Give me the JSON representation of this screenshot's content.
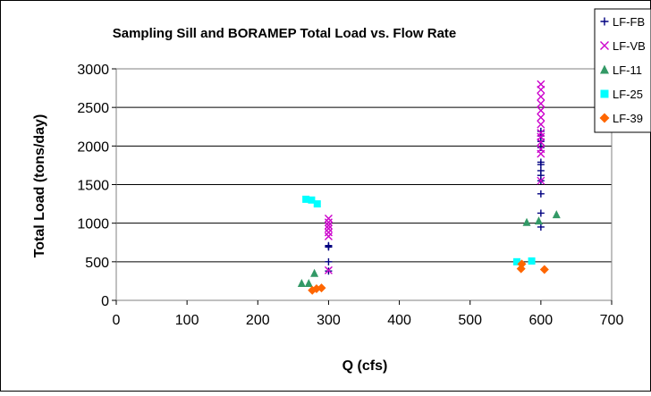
{
  "chart_data": {
    "type": "scatter",
    "title": "Sampling Sill and BORAMEP Total Load vs. Flow Rate",
    "xlabel": "Q (cfs)",
    "ylabel": "Total Load (tons/day)",
    "xlim": [
      0,
      700
    ],
    "ylim": [
      0,
      3000
    ],
    "x_ticks": [
      0,
      100,
      200,
      300,
      400,
      500,
      600,
      700
    ],
    "y_ticks": [
      0,
      500,
      1000,
      1500,
      2000,
      2500,
      3000
    ],
    "x_tick_labels": [
      "0",
      "100",
      "200",
      "300",
      "400",
      "500",
      "600",
      "700"
    ],
    "y_tick_labels": [
      "0",
      "500",
      "1000",
      "1500",
      "2000",
      "2500",
      "3000"
    ],
    "grid": "horizontal",
    "legend_position": "top-right",
    "series": [
      {
        "name": "LF-FB",
        "marker": "plus",
        "color": "#000080",
        "points": [
          [
            300,
            380
          ],
          [
            300,
            500
          ],
          [
            300,
            690
          ],
          [
            300,
            700
          ],
          [
            300,
            710
          ],
          [
            600,
            950
          ],
          [
            600,
            1130
          ],
          [
            600,
            1380
          ],
          [
            600,
            1550
          ],
          [
            600,
            1620
          ],
          [
            600,
            1680
          ],
          [
            600,
            1760
          ],
          [
            600,
            1790
          ],
          [
            600,
            1980
          ],
          [
            600,
            2060
          ],
          [
            600,
            2130
          ],
          [
            600,
            2190
          ]
        ]
      },
      {
        "name": "LF-VB",
        "marker": "cross",
        "color": "#CC00CC",
        "points": [
          [
            300,
            390
          ],
          [
            300,
            830
          ],
          [
            300,
            880
          ],
          [
            300,
            930
          ],
          [
            300,
            970
          ],
          [
            300,
            1010
          ],
          [
            300,
            1060
          ],
          [
            600,
            1550
          ],
          [
            600,
            1900
          ],
          [
            600,
            1960
          ],
          [
            600,
            2050
          ],
          [
            600,
            2120
          ],
          [
            600,
            2170
          ],
          [
            600,
            2280
          ],
          [
            600,
            2370
          ],
          [
            600,
            2460
          ],
          [
            600,
            2550
          ],
          [
            600,
            2640
          ],
          [
            600,
            2730
          ],
          [
            600,
            2800
          ]
        ]
      },
      {
        "name": "LF-11",
        "marker": "triangle",
        "color": "#339966",
        "points": [
          [
            262,
            220
          ],
          [
            272,
            220
          ],
          [
            280,
            350
          ],
          [
            580,
            1010
          ],
          [
            597,
            1030
          ],
          [
            622,
            1110
          ]
        ]
      },
      {
        "name": "LF-25",
        "marker": "square",
        "color": "#00FFFF",
        "points": [
          [
            268,
            1310
          ],
          [
            276,
            1300
          ],
          [
            284,
            1250
          ],
          [
            566,
            500
          ],
          [
            587,
            510
          ]
        ]
      },
      {
        "name": "LF-39",
        "marker": "diamond",
        "color": "#FF6600",
        "points": [
          [
            277,
            130
          ],
          [
            283,
            150
          ],
          [
            290,
            160
          ],
          [
            572,
            410
          ],
          [
            573,
            470
          ],
          [
            605,
            400
          ]
        ]
      }
    ]
  }
}
